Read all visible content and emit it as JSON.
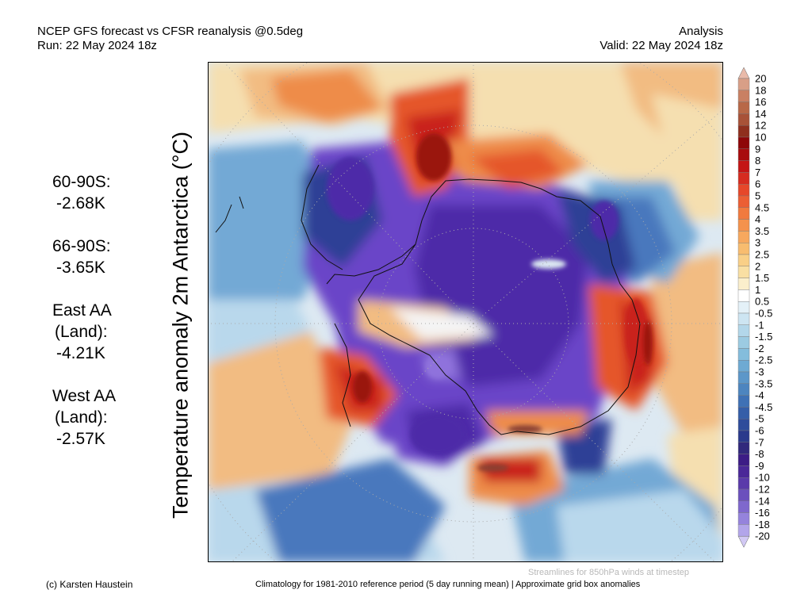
{
  "header": {
    "title": "NCEP GFS forecast vs CFSR reanalysis @0.5deg",
    "run": "Run: 22 May 2024 18z",
    "kind": "Analysis",
    "valid": "Valid: 22 May 2024 18z"
  },
  "axis": {
    "ylabel": "Temperature anomaly 2m Antarctica (°C)"
  },
  "stats": [
    {
      "label": "60-90S:",
      "value": "-2.68K"
    },
    {
      "label": "66-90S:",
      "value": "-3.65K"
    },
    {
      "label": "East AA",
      "sublabel": "(Land):",
      "value": "-4.21K"
    },
    {
      "label": "West AA",
      "sublabel": "(Land):",
      "value": "-2.57K"
    }
  ],
  "colorbar": {
    "labels": [
      "20",
      "18",
      "16",
      "14",
      "12",
      "10",
      "9",
      "8",
      "7",
      "6",
      "5",
      "4.5",
      "4",
      "3.5",
      "3",
      "2.5",
      "2",
      "1.5",
      "1",
      "0.5",
      "-0.5",
      "-1",
      "-1.5",
      "-2",
      "-2.5",
      "-3",
      "-3.5",
      "-4",
      "-4.5",
      "-5",
      "-6",
      "-7",
      "-8",
      "-9",
      "-10",
      "-12",
      "-14",
      "-16",
      "-18",
      "-20"
    ],
    "colors": [
      "#e9baa9",
      "#d89f87",
      "#c98063",
      "#b86847",
      "#a85238",
      "#8f2f1e",
      "#8e0608",
      "#a80b0d",
      "#c41515",
      "#d62c20",
      "#e6472a",
      "#ec5e34",
      "#f17a3e",
      "#f4924c",
      "#f7a85e",
      "#f8bc6f",
      "#f9cf87",
      "#f9dfa3",
      "#fbefcc",
      "#ffffff",
      "#e4f1f8",
      "#cde5f2",
      "#b3d7ea",
      "#9ccbe2",
      "#84bddc",
      "#6eaad3",
      "#5c97c9",
      "#4d85bf",
      "#3f71b5",
      "#355ea8",
      "#2e4c9b",
      "#2a3a8c",
      "#31297c",
      "#3c1c86",
      "#4a2898",
      "#5a3aaa",
      "#6b50bd",
      "#7f68cd",
      "#9583dc",
      "#b2a5ea",
      "#d2c9f4"
    ]
  },
  "map": {
    "colors": {
      "deepPurple": "#4e2aa8",
      "purple": "#6a45c8",
      "lightPurple": "#8f72dc",
      "navy": "#2d3f96",
      "blue": "#4a78bd",
      "midBlue": "#73a9d5",
      "lightBlue": "#b9d8ec",
      "paleBlue": "#dde9f2",
      "white": "#f4f4f4",
      "cream": "#f5dfb0",
      "peach": "#f2bc82",
      "orange": "#ee8c4a",
      "redOrange": "#e5572c",
      "red": "#c9231a",
      "darkRed": "#9a1210",
      "brown": "#8a4030"
    }
  },
  "footer": {
    "copyright": "(c) Karsten Haustein",
    "climatology": "Climatology for 1981-2010 reference period (5 day running mean) | Approximate grid box anomalies",
    "streamlines": "Streamlines for 850hPa winds at timestep"
  }
}
